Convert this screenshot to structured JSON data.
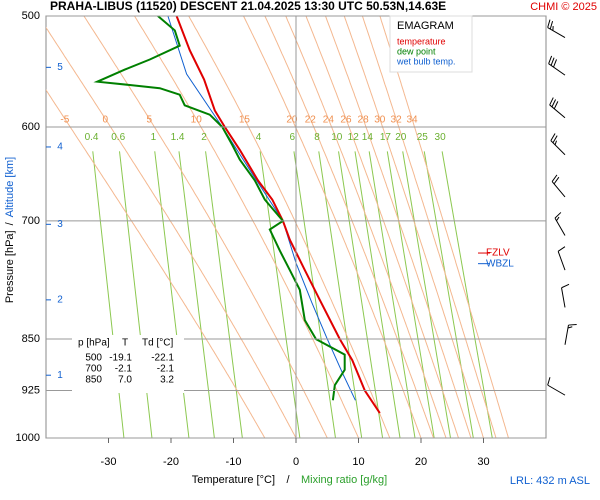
{
  "chart_data": {
    "type": "line",
    "title": "PRAHA-LIBUS (11520)  DESCENT  21.04.2025 13:30 UTC  50.53N,14.63E",
    "credit": "CHMI © 2025",
    "legend_title": "EMAGRAM",
    "series": [
      {
        "name": "temperature",
        "color": "#e00000",
        "pressure": [
          500,
          529,
          555,
          584,
          600,
          623,
          655,
          676,
          700,
          722,
          759,
          797,
          850,
          880,
          925,
          960
        ],
        "values": [
          -19.1,
          -17,
          -14.7,
          -13,
          -11.4,
          -9,
          -6.1,
          -3.8,
          -2.1,
          -1,
          1.4,
          3.8,
          7.0,
          9,
          11,
          13.4
        ]
      },
      {
        "name": "dew point",
        "color": "#008000",
        "pressure": [
          500,
          512,
          525,
          537,
          546,
          557,
          560,
          563,
          569,
          579,
          588,
          600,
          618,
          633,
          655,
          676,
          700,
          710,
          735,
          759,
          784,
          824,
          850,
          872,
          894,
          917,
          940
        ],
        "values": [
          -22.1,
          -19.4,
          -18.6,
          -23.4,
          -27.4,
          -31.8,
          -26.6,
          -21.8,
          -18.6,
          -17.8,
          -13.8,
          -11.8,
          -10.2,
          -9,
          -6.6,
          -5,
          -2.1,
          -4.2,
          -2.6,
          -1,
          0.6,
          1.4,
          3.2,
          7.8,
          7.8,
          6.2,
          5.9
        ]
      },
      {
        "name": "wet bulb temp.",
        "color": "#1060d0",
        "pressure": [
          500,
          550,
          600,
          650,
          700,
          750,
          800,
          850,
          900,
          940
        ],
        "values": [
          -20.5,
          -17.5,
          -11.8,
          -6.8,
          -2.1,
          0,
          2.5,
          5,
          7.5,
          9.5
        ]
      }
    ],
    "yscale": "log",
    "ylim": [
      1000,
      500
    ],
    "yticks": [
      500,
      600,
      700,
      850,
      925,
      1000
    ],
    "xlim": [
      -40,
      40
    ],
    "xticks": [
      -30,
      -20,
      -10,
      0,
      10,
      20,
      30
    ],
    "isotherm_line": 0,
    "xlabel": "Temperature [°C]",
    "axis_separator": "/",
    "xlabel2": "Mixing ratio [g/kg]",
    "ylabel": "Pressure [hPa]",
    "ylabel2": "Altitude [km]",
    "altitude_ticks": [
      1,
      2,
      3,
      4,
      5
    ],
    "altitude_pressure": [
      902,
      797,
      704,
      620,
      544
    ],
    "mixing_ratio_lines": [
      0.4,
      0.6,
      1,
      1.4,
      2,
      4,
      6,
      8,
      10,
      12,
      14,
      17,
      20,
      25,
      30
    ],
    "moist_adiabats": [
      -5,
      0,
      5,
      10,
      15,
      20,
      22,
      24,
      26,
      28,
      30,
      32,
      34
    ],
    "levels": [
      {
        "label": "FZLV",
        "pressure": 738,
        "color": "#e00000"
      },
      {
        "label": "WBZL",
        "pressure": 751,
        "color": "#1060d0"
      }
    ],
    "winds": {
      "pressure": [
        518,
        551,
        591,
        628,
        673,
        717,
        759,
        807,
        858,
        932
      ],
      "direction": [
        300,
        305,
        310,
        315,
        320,
        330,
        340,
        350,
        10,
        300
      ],
      "speed": [
        25,
        30,
        30,
        25,
        20,
        15,
        10,
        10,
        15,
        10
      ]
    },
    "table": {
      "header": [
        "p [hPa]",
        "T",
        "Td [°C]"
      ],
      "rows": [
        [
          "500",
          "-19.1",
          "-22.1"
        ],
        [
          "700",
          "-2.1",
          "-2.1"
        ],
        [
          "850",
          "7.0",
          "3.2"
        ]
      ]
    },
    "footnote": "LRL: 432 m ASL"
  }
}
